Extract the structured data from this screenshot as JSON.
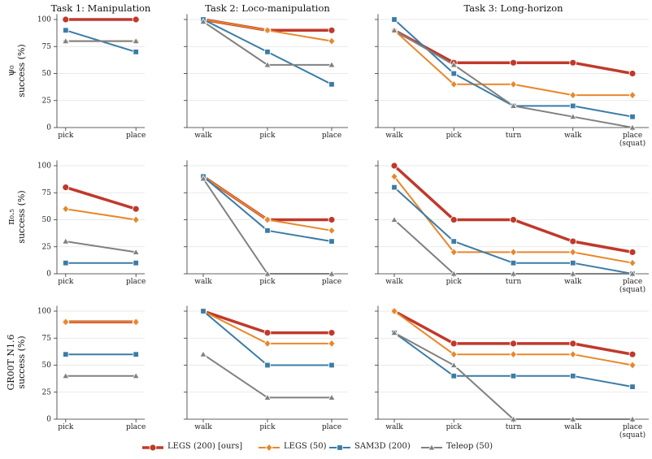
{
  "chart_data": [
    {
      "type": "line",
      "title": "Task 1: Manipulation",
      "ylabel": "ψ₀\nsuccess (%)",
      "categories": [
        "pick",
        "place"
      ],
      "ylim": [
        0,
        105
      ],
      "yticks": [
        0,
        25,
        50,
        75,
        100
      ],
      "grid": true,
      "series": [
        {
          "name": "LEGS (200) [ours]",
          "color": "#c0392b",
          "marker": "circle",
          "values": [
            100,
            100
          ]
        },
        {
          "name": "LEGS (50)",
          "color": "#e8872a",
          "marker": "diamond",
          "values": [
            80,
            80
          ]
        },
        {
          "name": "SAM3D (200)",
          "color": "#3b7ca6",
          "marker": "square",
          "values": [
            90,
            70
          ]
        },
        {
          "name": "Teleop (50)",
          "color": "#808080",
          "marker": "triangle",
          "values": [
            80,
            80
          ]
        }
      ]
    },
    {
      "type": "line",
      "title": "Task 2: Loco-manipulation",
      "categories": [
        "walk",
        "pick",
        "place"
      ],
      "ylim": [
        0,
        105
      ],
      "yticks": [
        0,
        25,
        50,
        75,
        100
      ],
      "grid": true,
      "series": [
        {
          "color": "#c0392b",
          "marker": "circle",
          "values": [
            100,
            90,
            90
          ]
        },
        {
          "color": "#e8872a",
          "marker": "diamond",
          "values": [
            100,
            90,
            80
          ]
        },
        {
          "color": "#3b7ca6",
          "marker": "square",
          "values": [
            100,
            70,
            40
          ]
        },
        {
          "color": "#808080",
          "marker": "triangle",
          "values": [
            98,
            58,
            58
          ]
        }
      ]
    },
    {
      "type": "line",
      "title": "Task 3: Long-horizon",
      "categories": [
        "walk",
        "pick",
        "turn",
        "walk",
        "place\n(squat)"
      ],
      "ylim": [
        0,
        105
      ],
      "yticks": [
        0,
        25,
        50,
        75,
        100
      ],
      "grid": true,
      "series": [
        {
          "color": "#c0392b",
          "marker": "circle",
          "values": [
            90,
            60,
            60,
            60,
            50
          ]
        },
        {
          "color": "#e8872a",
          "marker": "diamond",
          "values": [
            90,
            40,
            40,
            30,
            30
          ]
        },
        {
          "color": "#3b7ca6",
          "marker": "square",
          "values": [
            100,
            50,
            20,
            20,
            10
          ]
        },
        {
          "color": "#808080",
          "marker": "triangle",
          "values": [
            90,
            58,
            20,
            10,
            0
          ]
        }
      ]
    },
    {
      "type": "line",
      "ylabel": "π₀.₅\nsuccess (%)",
      "categories": [
        "pick",
        "place"
      ],
      "ylim": [
        0,
        105
      ],
      "yticks": [
        0,
        25,
        50,
        75,
        100
      ],
      "grid": true,
      "series": [
        {
          "color": "#c0392b",
          "marker": "circle",
          "values": [
            80,
            60
          ]
        },
        {
          "color": "#e8872a",
          "marker": "diamond",
          "values": [
            60,
            50
          ]
        },
        {
          "color": "#3b7ca6",
          "marker": "square",
          "values": [
            10,
            10
          ]
        },
        {
          "color": "#808080",
          "marker": "triangle",
          "values": [
            30,
            20
          ]
        }
      ]
    },
    {
      "type": "line",
      "categories": [
        "walk",
        "pick",
        "place"
      ],
      "ylim": [
        0,
        105
      ],
      "yticks": [
        0,
        25,
        50,
        75,
        100
      ],
      "grid": true,
      "series": [
        {
          "color": "#c0392b",
          "marker": "circle",
          "values": [
            90,
            50,
            50
          ]
        },
        {
          "color": "#e8872a",
          "marker": "diamond",
          "values": [
            90,
            50,
            40
          ]
        },
        {
          "color": "#3b7ca6",
          "marker": "square",
          "values": [
            90,
            40,
            30
          ]
        },
        {
          "color": "#808080",
          "marker": "triangle",
          "values": [
            88,
            0,
            0
          ]
        }
      ]
    },
    {
      "type": "line",
      "categories": [
        "walk",
        "pick",
        "turn",
        "walk",
        "place\n(squat)"
      ],
      "ylim": [
        0,
        105
      ],
      "yticks": [
        0,
        25,
        50,
        75,
        100
      ],
      "grid": true,
      "series": [
        {
          "color": "#c0392b",
          "marker": "circle",
          "values": [
            100,
            50,
            50,
            30,
            20
          ]
        },
        {
          "color": "#e8872a",
          "marker": "diamond",
          "values": [
            90,
            20,
            20,
            20,
            10
          ]
        },
        {
          "color": "#3b7ca6",
          "marker": "square",
          "values": [
            80,
            30,
            10,
            10,
            0
          ]
        },
        {
          "color": "#808080",
          "marker": "triangle",
          "values": [
            50,
            0,
            0,
            0,
            0
          ]
        }
      ]
    },
    {
      "type": "line",
      "ylabel": "GR00T N1.6\nsuccess (%)",
      "categories": [
        "pick",
        "place"
      ],
      "ylim": [
        0,
        105
      ],
      "yticks": [
        0,
        25,
        50,
        75,
        100
      ],
      "grid": true,
      "series": [
        {
          "color": "#c0392b",
          "marker": "circle",
          "values": [
            90,
            90
          ]
        },
        {
          "color": "#e8872a",
          "marker": "diamond",
          "values": [
            90,
            90
          ]
        },
        {
          "color": "#3b7ca6",
          "marker": "square",
          "values": [
            60,
            60
          ]
        },
        {
          "color": "#808080",
          "marker": "triangle",
          "values": [
            40,
            40
          ]
        }
      ]
    },
    {
      "type": "line",
      "categories": [
        "walk",
        "pick",
        "place"
      ],
      "ylim": [
        0,
        105
      ],
      "yticks": [
        0,
        25,
        50,
        75,
        100
      ],
      "grid": true,
      "series": [
        {
          "color": "#c0392b",
          "marker": "circle",
          "values": [
            100,
            80,
            80
          ]
        },
        {
          "color": "#e8872a",
          "marker": "diamond",
          "values": [
            100,
            70,
            70
          ]
        },
        {
          "color": "#3b7ca6",
          "marker": "square",
          "values": [
            100,
            50,
            50
          ]
        },
        {
          "color": "#808080",
          "marker": "triangle",
          "values": [
            60,
            20,
            20
          ]
        }
      ]
    },
    {
      "type": "line",
      "categories": [
        "walk",
        "pick",
        "turn",
        "walk",
        "place\n(squat)"
      ],
      "ylim": [
        0,
        105
      ],
      "yticks": [
        0,
        25,
        50,
        75,
        100
      ],
      "grid": true,
      "series": [
        {
          "color": "#c0392b",
          "marker": "circle",
          "values": [
            100,
            70,
            70,
            70,
            60
          ]
        },
        {
          "color": "#e8872a",
          "marker": "diamond",
          "values": [
            100,
            60,
            60,
            60,
            50
          ]
        },
        {
          "color": "#3b7ca6",
          "marker": "square",
          "values": [
            80,
            40,
            40,
            40,
            30
          ]
        },
        {
          "color": "#808080",
          "marker": "triangle",
          "values": [
            80,
            50,
            0,
            0,
            0
          ]
        }
      ]
    }
  ]
}
